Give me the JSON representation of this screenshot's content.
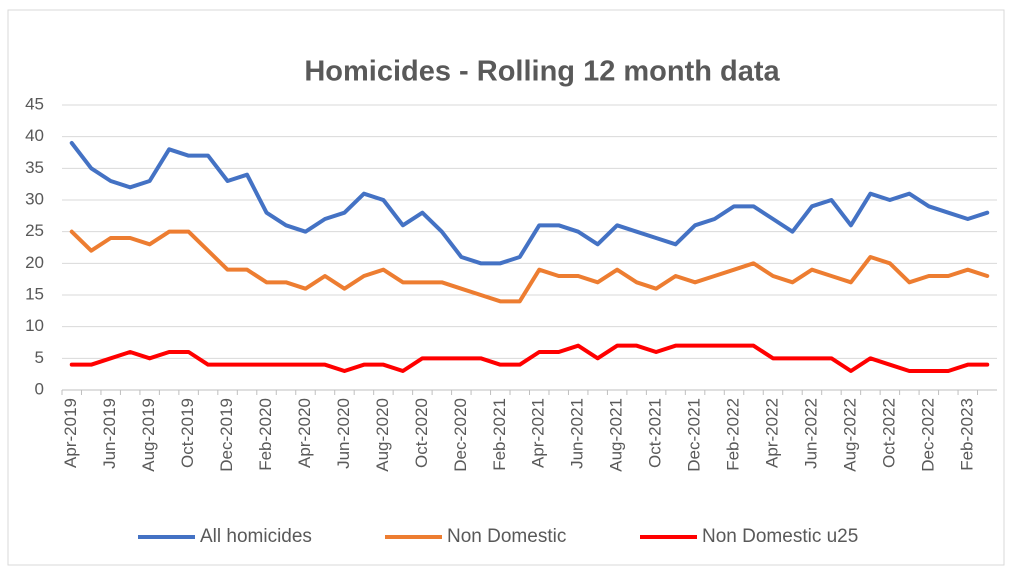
{
  "chart_data": {
    "type": "line",
    "title": "Homicides - Rolling 12 month data",
    "categories": [
      "Apr-2019",
      null,
      "Jun-2019",
      null,
      "Aug-2019",
      null,
      "Oct-2019",
      null,
      "Dec-2019",
      null,
      "Feb-2020",
      null,
      "Apr-2020",
      null,
      "Jun-2020",
      null,
      "Aug-2020",
      null,
      "Oct-2020",
      null,
      "Dec-2020",
      null,
      "Feb-2021",
      null,
      "Apr-2021",
      null,
      "Jun-2021",
      null,
      "Aug-2021",
      null,
      "Oct-2021",
      null,
      "Dec-2021",
      null,
      "Feb-2022",
      null,
      "Apr-2022",
      null,
      "Jun-2022",
      null,
      "Aug-2022",
      null,
      "Oct-2022",
      null,
      "Dec-2022",
      null,
      "Feb-2023",
      null
    ],
    "series": [
      {
        "name": "All homicides",
        "color": "#4472c4",
        "values": [
          39,
          35,
          33,
          32,
          33,
          38,
          37,
          37,
          33,
          34,
          28,
          26,
          25,
          27,
          28,
          31,
          30,
          26,
          28,
          25,
          21,
          20,
          20,
          21,
          26,
          26,
          25,
          23,
          26,
          25,
          24,
          23,
          26,
          27,
          29,
          29,
          27,
          25,
          29,
          30,
          26,
          31,
          30,
          31,
          29,
          28,
          27,
          28
        ]
      },
      {
        "name": "Non Domestic",
        "color": "#ed7d31",
        "values": [
          25,
          22,
          24,
          24,
          23,
          25,
          25,
          22,
          19,
          19,
          17,
          17,
          16,
          18,
          16,
          18,
          19,
          17,
          17,
          17,
          16,
          15,
          14,
          14,
          19,
          18,
          18,
          17,
          19,
          17,
          16,
          18,
          17,
          18,
          19,
          20,
          18,
          17,
          19,
          18,
          17,
          21,
          20,
          17,
          18,
          18,
          19,
          18
        ]
      },
      {
        "name": "Non Domestic u25",
        "color": "#ff0000",
        "values": [
          4,
          4,
          5,
          6,
          5,
          6,
          6,
          4,
          4,
          4,
          4,
          4,
          4,
          4,
          3,
          4,
          4,
          3,
          5,
          5,
          5,
          5,
          4,
          4,
          6,
          6,
          7,
          5,
          7,
          7,
          6,
          7,
          7,
          7,
          7,
          7,
          5,
          5,
          5,
          5,
          3,
          5,
          4,
          3,
          3,
          3,
          4,
          4
        ]
      }
    ],
    "ylim": [
      0,
      45
    ],
    "yticks": [
      0,
      5,
      10,
      15,
      20,
      25,
      30,
      35,
      40,
      45
    ],
    "grid": true,
    "legend": "bottom"
  }
}
